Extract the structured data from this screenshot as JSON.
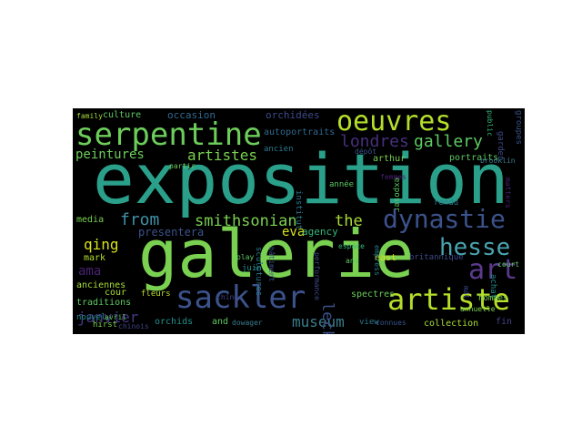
{
  "wordcloud": {
    "background": "#000000",
    "colormap": "viridis",
    "words": [
      {
        "text": "exposition",
        "color": "#2aa08a"
      },
      {
        "text": "galerie",
        "color": "#7ad151"
      },
      {
        "text": "serpentine",
        "color": "#6ccd5a"
      },
      {
        "text": "oeuvres",
        "color": "#b5de2b"
      },
      {
        "text": "sackler",
        "color": "#3b528b"
      },
      {
        "text": "artiste",
        "color": "#b5de2b"
      },
      {
        "text": "dynastie",
        "color": "#3b528b"
      },
      {
        "text": "hesse",
        "color": "#48a4b0"
      },
      {
        "text": "art",
        "color": "#5b3a8e"
      },
      {
        "text": "smithsonian",
        "color": "#7ad151"
      },
      {
        "text": "londres",
        "color": "#472f7d"
      },
      {
        "text": "gallery",
        "color": "#5ec962"
      },
      {
        "text": "from",
        "color": "#3e90a6"
      },
      {
        "text": "the",
        "color": "#a8db34"
      },
      {
        "text": "artistes",
        "color": "#7ad151"
      },
      {
        "text": "peintures",
        "color": "#6ccd5a"
      },
      {
        "text": "qing",
        "color": "#d8e219"
      },
      {
        "text": "ama",
        "color": "#482173"
      },
      {
        "text": "janvier",
        "color": "#443983"
      },
      {
        "text": "museum",
        "color": "#3b7c8c"
      },
      {
        "text": "leckey",
        "color": "#3b528b"
      },
      {
        "text": "eva",
        "color": "#d8e219"
      },
      {
        "text": "culture",
        "color": "#5ec962"
      },
      {
        "text": "occasion",
        "color": "#31688e"
      },
      {
        "text": "orchidées",
        "color": "#3e4a89"
      },
      {
        "text": "autoportraits",
        "color": "#31688e"
      },
      {
        "text": "presentera",
        "color": "#3b528b"
      },
      {
        "text": "agency",
        "color": "#35b779"
      },
      {
        "text": "mark",
        "color": "#b5de2b"
      },
      {
        "text": "media",
        "color": "#7ad151"
      },
      {
        "text": "anciennes",
        "color": "#a8db34"
      },
      {
        "text": "traditions",
        "color": "#5ec962"
      },
      {
        "text": "cour",
        "color": "#a8db34"
      },
      {
        "text": "nouvel",
        "color": "#21918c"
      },
      {
        "text": "fleurs",
        "color": "#bddf26"
      },
      {
        "text": "orchids",
        "color": "#21918c"
      },
      {
        "text": "and",
        "color": "#5ec962"
      },
      {
        "text": "dowager",
        "color": "#3b7c8c"
      },
      {
        "text": "hirst",
        "color": "#7ad151"
      },
      {
        "text": "chinois",
        "color": "#414487"
      },
      {
        "text": "avril",
        "color": "#5ec962"
      },
      {
        "text": "juin",
        "color": "#21918c"
      },
      {
        "text": "china",
        "color": "#414487"
      },
      {
        "text": "sculptures",
        "color": "#2a788e"
      },
      {
        "text": "play",
        "color": "#5ec962"
      },
      {
        "text": "ancien",
        "color": "#2a788e"
      },
      {
        "text": "partir",
        "color": "#6ccd5a"
      },
      {
        "text": "année",
        "color": "#5ec962"
      },
      {
        "text": "east",
        "color": "#d8e219"
      },
      {
        "text": "arthur",
        "color": "#7ad151"
      },
      {
        "text": "dépôt",
        "color": "#3b528b"
      },
      {
        "text": "rendu",
        "color": "#2a788e"
      },
      {
        "text": "espace",
        "color": "#35b779"
      },
      {
        "text": "ans",
        "color": "#5ec962"
      },
      {
        "text": "spectres",
        "color": "#6ccd5a"
      },
      {
        "text": "view",
        "color": "#2a788e"
      },
      {
        "text": "collection",
        "color": "#a8db34"
      },
      {
        "text": "fin",
        "color": "#414487"
      },
      {
        "text": "annuelle",
        "color": "#7ad151"
      },
      {
        "text": "portraits",
        "color": "#5ec962"
      },
      {
        "text": "brooklin",
        "color": "#3b7c8c"
      },
      {
        "text": "garden",
        "color": "#3e4a89"
      },
      {
        "text": "groupes",
        "color": "#3b528b"
      },
      {
        "text": "public",
        "color": "#35b779"
      },
      {
        "text": "femmes",
        "color": "#482173"
      },
      {
        "text": "exposer",
        "color": "#5ec962"
      },
      {
        "text": "hommes",
        "color": "#7ad151"
      },
      {
        "text": "britannique",
        "color": "#3e4a89"
      },
      {
        "text": "court",
        "color": "#5ec962"
      },
      {
        "text": "achat",
        "color": "#21918c"
      },
      {
        "text": "mal",
        "color": "#3e4a89"
      },
      {
        "text": "empress",
        "color": "#2a788e"
      },
      {
        "text": "family",
        "color": "#a8db34"
      },
      {
        "text": "matters",
        "color": "#482173"
      },
      {
        "text": "institut",
        "color": "#2a788e"
      },
      {
        "text": "bâtiment",
        "color": "#3b528b"
      },
      {
        "text": "performance",
        "color": "#3e4a89"
      },
      {
        "text": "connues",
        "color": "#3b528b"
      }
    ]
  }
}
